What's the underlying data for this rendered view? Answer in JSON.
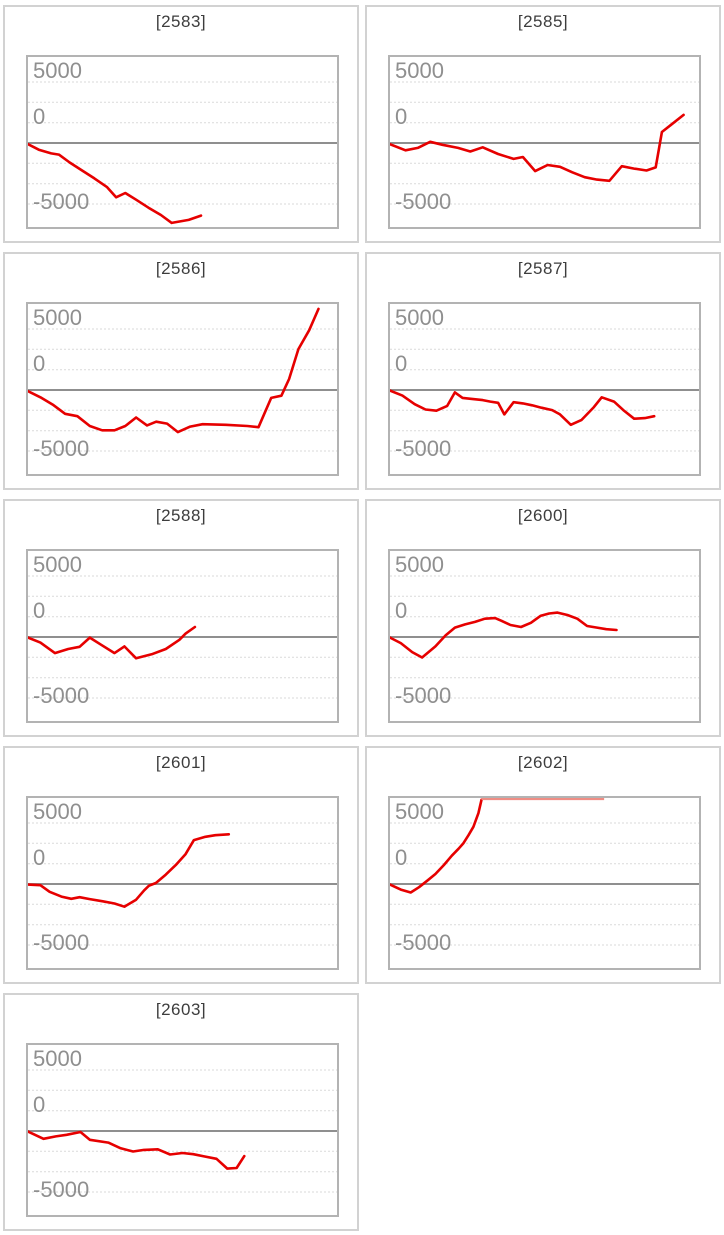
{
  "page": {
    "background": "#ffffff",
    "layout": "2-column grid of 9 machine payout graph cards, last cell empty"
  },
  "axis": {
    "tick_labels": [
      "5000",
      "0",
      "-5000"
    ]
  },
  "colors": {
    "series_red": "#e60000",
    "overflow_red": "#ef8d84",
    "zero_line": "#8f8f8f",
    "gridline": "#dadada",
    "plot_border": "#b3b3b3",
    "card_border": "#d2d2d2",
    "tick_label": "#8f8f8f",
    "title_text": "#3d3d3d"
  },
  "chart_data": [
    {
      "type": "line",
      "title": "[2583]",
      "xlabel": "",
      "ylabel": "",
      "ylim": [
        -7000,
        7000
      ],
      "yticks": [
        5000,
        0,
        -5000
      ],
      "grid": "horizontal dashed every ~1667 units, solid line at 0",
      "legend": "none",
      "points": [
        [
          0,
          -100
        ],
        [
          0.035,
          -550
        ],
        [
          0.075,
          -850
        ],
        [
          0.1,
          -950
        ],
        [
          0.135,
          -1600
        ],
        [
          0.175,
          -2250
        ],
        [
          0.215,
          -2900
        ],
        [
          0.255,
          -3600
        ],
        [
          0.285,
          -4450
        ],
        [
          0.315,
          -4100
        ],
        [
          0.35,
          -4650
        ],
        [
          0.39,
          -5300
        ],
        [
          0.43,
          -5900
        ],
        [
          0.465,
          -6550
        ],
        [
          0.52,
          -6300
        ],
        [
          0.56,
          -5950
        ]
      ]
    },
    {
      "type": "line",
      "title": "[2585]",
      "xlabel": "",
      "ylabel": "",
      "ylim": [
        -7000,
        7000
      ],
      "yticks": [
        5000,
        0,
        -5000
      ],
      "grid": "horizontal dashed every ~1667 units, solid line at 0",
      "legend": "none",
      "points": [
        [
          0,
          -100
        ],
        [
          0.05,
          -600
        ],
        [
          0.09,
          -400
        ],
        [
          0.13,
          100
        ],
        [
          0.17,
          -150
        ],
        [
          0.22,
          -400
        ],
        [
          0.26,
          -700
        ],
        [
          0.3,
          -350
        ],
        [
          0.35,
          -900
        ],
        [
          0.4,
          -1300
        ],
        [
          0.43,
          -1150
        ],
        [
          0.47,
          -2300
        ],
        [
          0.51,
          -1800
        ],
        [
          0.55,
          -1950
        ],
        [
          0.59,
          -2400
        ],
        [
          0.63,
          -2800
        ],
        [
          0.67,
          -3000
        ],
        [
          0.71,
          -3100
        ],
        [
          0.75,
          -1900
        ],
        [
          0.79,
          -2100
        ],
        [
          0.83,
          -2250
        ],
        [
          0.86,
          -2000
        ],
        [
          0.88,
          900
        ],
        [
          0.91,
          1500
        ],
        [
          0.95,
          2300
        ]
      ]
    },
    {
      "type": "line",
      "title": "[2586]",
      "xlabel": "",
      "ylabel": "",
      "ylim": [
        -7000,
        7000
      ],
      "yticks": [
        5000,
        0,
        -5000
      ],
      "grid": "horizontal dashed every ~1667 units, solid line at 0",
      "legend": "none",
      "points": [
        [
          0,
          -100
        ],
        [
          0.04,
          -600
        ],
        [
          0.08,
          -1200
        ],
        [
          0.12,
          -1950
        ],
        [
          0.16,
          -2150
        ],
        [
          0.2,
          -2950
        ],
        [
          0.24,
          -3300
        ],
        [
          0.28,
          -3300
        ],
        [
          0.315,
          -2950
        ],
        [
          0.35,
          -2250
        ],
        [
          0.385,
          -2900
        ],
        [
          0.415,
          -2600
        ],
        [
          0.45,
          -2750
        ],
        [
          0.485,
          -3450
        ],
        [
          0.525,
          -3000
        ],
        [
          0.565,
          -2800
        ],
        [
          0.64,
          -2850
        ],
        [
          0.71,
          -2950
        ],
        [
          0.746,
          -3050
        ],
        [
          0.787,
          -650
        ],
        [
          0.82,
          -470
        ],
        [
          0.845,
          900
        ],
        [
          0.875,
          3350
        ],
        [
          0.91,
          4900
        ],
        [
          0.94,
          6650
        ]
      ]
    },
    {
      "type": "line",
      "title": "[2587]",
      "xlabel": "",
      "ylabel": "",
      "ylim": [
        -7000,
        7000
      ],
      "yticks": [
        5000,
        0,
        -5000
      ],
      "grid": "horizontal dashed every ~1667 units, solid line at 0",
      "legend": "none",
      "points": [
        [
          0,
          -50
        ],
        [
          0.04,
          -460
        ],
        [
          0.08,
          -1160
        ],
        [
          0.115,
          -1600
        ],
        [
          0.15,
          -1700
        ],
        [
          0.185,
          -1300
        ],
        [
          0.21,
          -200
        ],
        [
          0.235,
          -650
        ],
        [
          0.265,
          -730
        ],
        [
          0.3,
          -830
        ],
        [
          0.325,
          -950
        ],
        [
          0.35,
          -1050
        ],
        [
          0.37,
          -2000
        ],
        [
          0.4,
          -1000
        ],
        [
          0.43,
          -1100
        ],
        [
          0.46,
          -1250
        ],
        [
          0.49,
          -1450
        ],
        [
          0.525,
          -1650
        ],
        [
          0.55,
          -2000
        ],
        [
          0.585,
          -2850
        ],
        [
          0.62,
          -2450
        ],
        [
          0.66,
          -1400
        ],
        [
          0.685,
          -600
        ],
        [
          0.725,
          -950
        ],
        [
          0.755,
          -1650
        ],
        [
          0.79,
          -2350
        ],
        [
          0.825,
          -2300
        ],
        [
          0.855,
          -2150
        ]
      ]
    },
    {
      "type": "line",
      "title": "[2588]",
      "xlabel": "",
      "ylabel": "",
      "ylim": [
        -7000,
        7000
      ],
      "yticks": [
        5000,
        0,
        -5000
      ],
      "grid": "horizontal dashed every ~1667 units, solid line at 0",
      "legend": "none",
      "points": [
        [
          0,
          -50
        ],
        [
          0.04,
          -460
        ],
        [
          0.087,
          -1320
        ],
        [
          0.13,
          -980
        ],
        [
          0.167,
          -800
        ],
        [
          0.2,
          -50
        ],
        [
          0.237,
          -640
        ],
        [
          0.28,
          -1320
        ],
        [
          0.312,
          -770
        ],
        [
          0.35,
          -1750
        ],
        [
          0.4,
          -1420
        ],
        [
          0.446,
          -980
        ],
        [
          0.49,
          -230
        ],
        [
          0.51,
          280
        ],
        [
          0.54,
          820
        ]
      ]
    },
    {
      "type": "line",
      "title": "[2600]",
      "xlabel": "",
      "ylabel": "",
      "ylim": [
        -7000,
        7000
      ],
      "yticks": [
        5000,
        0,
        -5000
      ],
      "grid": "horizontal dashed every ~1667 units, solid line at 0",
      "legend": "none",
      "points": [
        [
          0,
          -50
        ],
        [
          0.035,
          -500
        ],
        [
          0.072,
          -1240
        ],
        [
          0.104,
          -1680
        ],
        [
          0.147,
          -770
        ],
        [
          0.18,
          130
        ],
        [
          0.21,
          770
        ],
        [
          0.243,
          1030
        ],
        [
          0.275,
          1240
        ],
        [
          0.307,
          1500
        ],
        [
          0.34,
          1550
        ],
        [
          0.36,
          1340
        ],
        [
          0.39,
          980
        ],
        [
          0.424,
          820
        ],
        [
          0.456,
          1160
        ],
        [
          0.488,
          1750
        ],
        [
          0.515,
          1930
        ],
        [
          0.542,
          2000
        ],
        [
          0.574,
          1800
        ],
        [
          0.606,
          1500
        ],
        [
          0.638,
          900
        ],
        [
          0.67,
          770
        ],
        [
          0.7,
          640
        ],
        [
          0.733,
          570
        ]
      ]
    },
    {
      "type": "line",
      "title": "[2601]",
      "xlabel": "",
      "ylabel": "",
      "ylim": [
        -7000,
        7000
      ],
      "yticks": [
        5000,
        0,
        -5000
      ],
      "grid": "horizontal dashed every ~1667 units, solid line at 0",
      "legend": "none",
      "points": [
        [
          0,
          -50
        ],
        [
          0.04,
          -100
        ],
        [
          0.07,
          -640
        ],
        [
          0.108,
          -1030
        ],
        [
          0.14,
          -1210
        ],
        [
          0.167,
          -1080
        ],
        [
          0.2,
          -1240
        ],
        [
          0.242,
          -1420
        ],
        [
          0.28,
          -1600
        ],
        [
          0.312,
          -1860
        ],
        [
          0.35,
          -1290
        ],
        [
          0.376,
          -515
        ],
        [
          0.392,
          -130
        ],
        [
          0.414,
          80
        ],
        [
          0.446,
          770
        ],
        [
          0.478,
          1550
        ],
        [
          0.51,
          2450
        ],
        [
          0.537,
          3600
        ],
        [
          0.574,
          3870
        ],
        [
          0.606,
          4000
        ],
        [
          0.65,
          4070
        ]
      ]
    },
    {
      "type": "line",
      "title": "[2602]",
      "xlabel": "",
      "ylabel": "",
      "ylim": [
        -7000,
        7000
      ],
      "yticks": [
        5000,
        0,
        -5000
      ],
      "grid": "horizontal dashed every ~1667 units, solid line at 0",
      "legend": "none",
      "points": [
        [
          0,
          -50
        ],
        [
          0.035,
          -460
        ],
        [
          0.067,
          -700
        ],
        [
          0.094,
          -260
        ],
        [
          0.12,
          260
        ],
        [
          0.147,
          820
        ],
        [
          0.174,
          1550
        ],
        [
          0.2,
          2320
        ],
        [
          0.222,
          2890
        ],
        [
          0.238,
          3350
        ],
        [
          0.254,
          4000
        ],
        [
          0.27,
          4690
        ],
        [
          0.286,
          5800
        ],
        [
          0.296,
          6900
        ]
      ],
      "overflow_segment": {
        "x1": 0.296,
        "x2": 0.693,
        "value": "clipped above +7000"
      }
    },
    {
      "type": "line",
      "title": "[2603]",
      "xlabel": "",
      "ylabel": "",
      "ylim": [
        -7000,
        7000
      ],
      "yticks": [
        5000,
        0,
        -5000
      ],
      "grid": "horizontal dashed every ~1667 units, solid line at 0",
      "legend": "none",
      "points": [
        [
          0,
          -50
        ],
        [
          0.05,
          -640
        ],
        [
          0.09,
          -440
        ],
        [
          0.125,
          -310
        ],
        [
          0.17,
          -80
        ],
        [
          0.2,
          -720
        ],
        [
          0.26,
          -950
        ],
        [
          0.3,
          -1420
        ],
        [
          0.34,
          -1680
        ],
        [
          0.375,
          -1550
        ],
        [
          0.42,
          -1500
        ],
        [
          0.46,
          -1930
        ],
        [
          0.5,
          -1800
        ],
        [
          0.535,
          -1900
        ],
        [
          0.57,
          -2080
        ],
        [
          0.61,
          -2280
        ],
        [
          0.645,
          -3080
        ],
        [
          0.675,
          -3030
        ],
        [
          0.7,
          -2060
        ]
      ]
    }
  ]
}
